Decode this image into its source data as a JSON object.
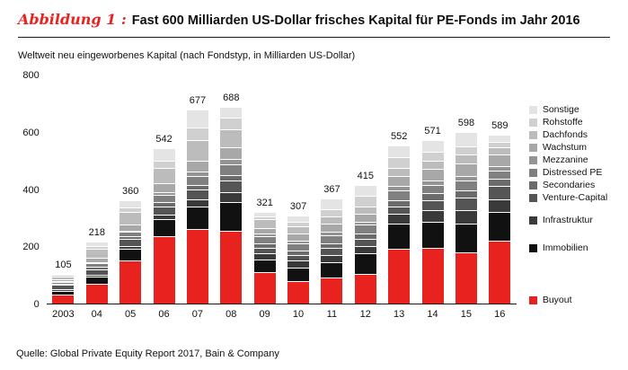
{
  "header": {
    "figure_label": "Abbildung 1 :",
    "title": "Fast 600 Milliarden US-Dollar frisches Kapital für PE-Fonds im Jahr 2016"
  },
  "subtitle": "Weltweit neu eingeworbenes Kapital (nach Fondstyp, in Milliarden US-Dollar)",
  "source": "Quelle: Global Private Equity Report 2017, Bain & Company",
  "colors": {
    "accent_red": "#e8231f",
    "axis": "#1a1a1a"
  },
  "chart_data": {
    "type": "bar",
    "stacked": true,
    "title": "Fast 600 Milliarden US-Dollar frisches Kapital für PE-Fonds im Jahr 2016",
    "subtitle": "Weltweit neu eingeworbenes Kapital (nach Fondstyp, in Milliarden US-Dollar)",
    "xlabel": "",
    "ylabel": "",
    "ylim": [
      0,
      800
    ],
    "yticks": [
      0,
      200,
      400,
      600,
      800
    ],
    "grid": false,
    "legend_position": "right",
    "categories": [
      "2003",
      "04",
      "05",
      "06",
      "07",
      "08",
      "09",
      "10",
      "11",
      "12",
      "13",
      "14",
      "15",
      "16"
    ],
    "totals": [
      105,
      218,
      360,
      542,
      677,
      688,
      321,
      307,
      367,
      415,
      552,
      571,
      598,
      589
    ],
    "series": [
      {
        "name": "Buyout",
        "color": "#e8231f",
        "values": [
          30,
          70,
          150,
          235,
          260,
          255,
          110,
          80,
          90,
          105,
          190,
          195,
          180,
          220
        ]
      },
      {
        "name": "Immobilien",
        "color": "#111111",
        "values": [
          15,
          25,
          40,
          60,
          80,
          100,
          45,
          45,
          55,
          70,
          90,
          90,
          100,
          100
        ]
      },
      {
        "name": "Infrastruktur",
        "color": "#3a3a3a",
        "values": [
          5,
          5,
          10,
          15,
          25,
          35,
          20,
          25,
          25,
          25,
          35,
          40,
          45,
          45
        ]
      },
      {
        "name": "Venture-Capital",
        "color": "#555555",
        "values": [
          15,
          20,
          25,
          30,
          35,
          40,
          20,
          20,
          25,
          25,
          25,
          35,
          45,
          45
        ]
      },
      {
        "name": "Secondaries",
        "color": "#6b6b6b",
        "values": [
          5,
          10,
          10,
          15,
          15,
          20,
          15,
          15,
          15,
          20,
          20,
          25,
          25,
          25
        ]
      },
      {
        "name": "Distressed PE",
        "color": "#808080",
        "values": [
          5,
          10,
          15,
          25,
          30,
          35,
          25,
          25,
          30,
          30,
          35,
          30,
          35,
          30
        ]
      },
      {
        "name": "Mezzanine",
        "color": "#949494",
        "values": [
          5,
          5,
          5,
          10,
          15,
          20,
          10,
          10,
          10,
          10,
          15,
          15,
          15,
          15
        ]
      },
      {
        "name": "Wachstum",
        "color": "#a8a8a8",
        "values": [
          5,
          15,
          20,
          30,
          40,
          40,
          20,
          25,
          30,
          30,
          35,
          40,
          45,
          40
        ]
      },
      {
        "name": "Dachfonds",
        "color": "#bcbcbc",
        "values": [
          10,
          30,
          45,
          55,
          70,
          65,
          30,
          25,
          25,
          25,
          30,
          30,
          30,
          25
        ]
      },
      {
        "name": "Rohstoffe",
        "color": "#d0d0d0",
        "values": [
          5,
          10,
          15,
          25,
          45,
          40,
          10,
          15,
          25,
          35,
          35,
          30,
          30,
          20
        ]
      },
      {
        "name": "Sonstige",
        "color": "#e4e4e4",
        "values": [
          5,
          18,
          25,
          42,
          62,
          38,
          16,
          22,
          37,
          40,
          42,
          41,
          48,
          24
        ]
      }
    ]
  }
}
